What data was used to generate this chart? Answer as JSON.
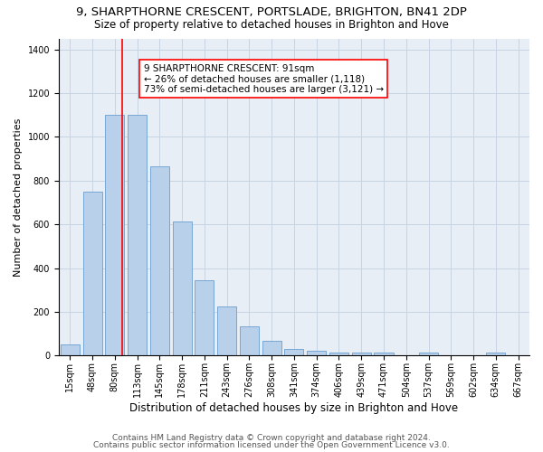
{
  "title1": "9, SHARPTHORNE CRESCENT, PORTSLADE, BRIGHTON, BN41 2DP",
  "title2": "Size of property relative to detached houses in Brighton and Hove",
  "xlabel": "Distribution of detached houses by size in Brighton and Hove",
  "ylabel": "Number of detached properties",
  "footer1": "Contains HM Land Registry data © Crown copyright and database right 2024.",
  "footer2": "Contains public sector information licensed under the Open Government Licence v3.0.",
  "categories": [
    "15sqm",
    "48sqm",
    "80sqm",
    "113sqm",
    "145sqm",
    "178sqm",
    "211sqm",
    "243sqm",
    "276sqm",
    "308sqm",
    "341sqm",
    "374sqm",
    "406sqm",
    "439sqm",
    "471sqm",
    "504sqm",
    "537sqm",
    "569sqm",
    "602sqm",
    "634sqm",
    "667sqm"
  ],
  "bar_heights": [
    50,
    750,
    1100,
    1100,
    865,
    615,
    345,
    225,
    135,
    68,
    30,
    20,
    13,
    13,
    13,
    0,
    13,
    0,
    0,
    13,
    0
  ],
  "ylim": [
    0,
    1450
  ],
  "yticks": [
    0,
    200,
    400,
    600,
    800,
    1000,
    1200,
    1400
  ],
  "bar_color": "#b8d0ea",
  "bar_edge_color": "#6a9ecf",
  "grid_color": "#c8d4e4",
  "bg_color": "#e8eef6",
  "vline_color": "red",
  "vline_x": 2.35,
  "annotation_text": "9 SHARPTHORNE CRESCENT: 91sqm\n← 26% of detached houses are smaller (1,118)\n73% of semi-detached houses are larger (3,121) →",
  "annotation_box_color": "white",
  "annotation_box_edge": "red",
  "title1_fontsize": 9.5,
  "title2_fontsize": 8.5,
  "xlabel_fontsize": 8.5,
  "ylabel_fontsize": 8,
  "annotation_fontsize": 7.5,
  "footer_fontsize": 6.5,
  "tick_fontsize": 7
}
